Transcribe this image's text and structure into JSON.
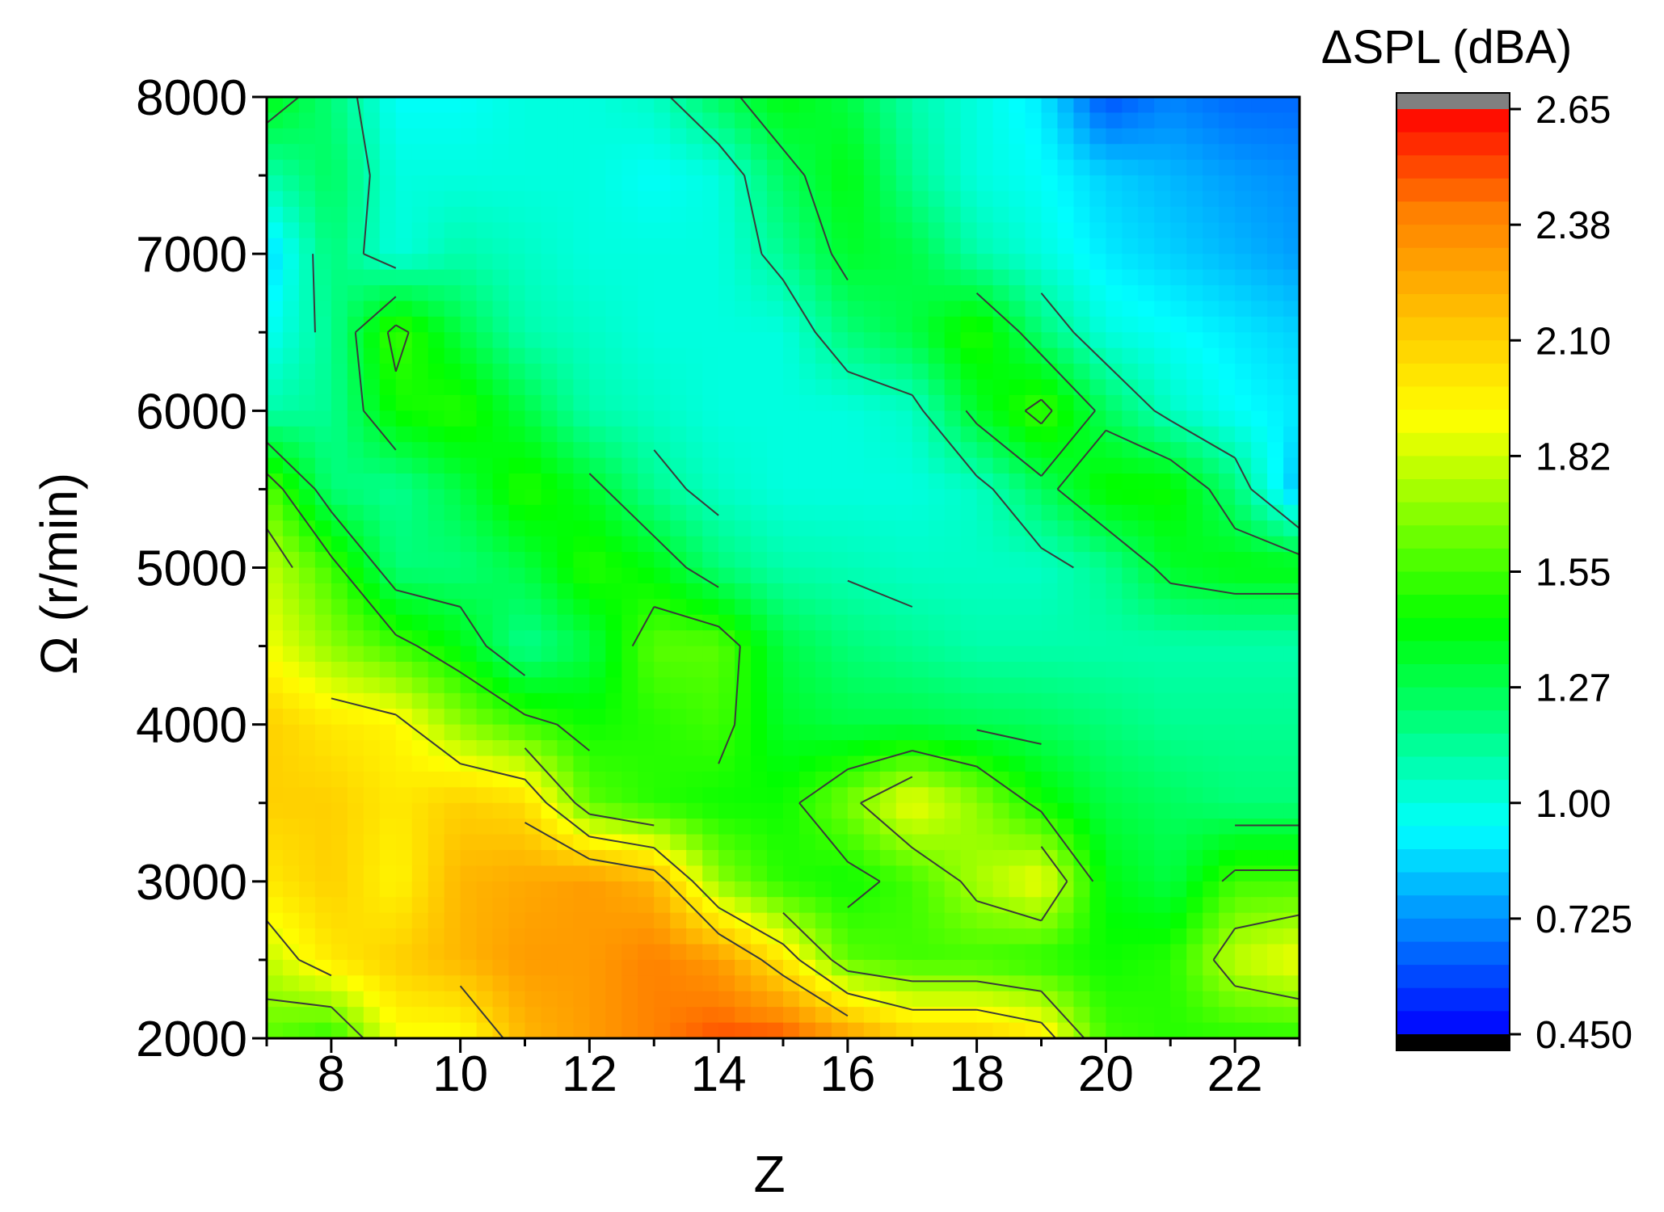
{
  "chart_data": {
    "type": "heatmap",
    "title": "",
    "xlabel": "Z",
    "ylabel": "Ω (r/min)",
    "xlim": [
      7,
      23
    ],
    "ylim": [
      2000,
      8000
    ],
    "x_ticks": [
      8,
      10,
      12,
      14,
      16,
      18,
      20,
      22
    ],
    "y_ticks": [
      2000,
      3000,
      4000,
      5000,
      6000,
      7000,
      8000
    ],
    "colorbar": {
      "label": "ΔSPL (dBA)",
      "range": [
        0.45,
        2.65
      ],
      "ticks": [
        "0.450",
        "0.725",
        "1.00",
        "1.27",
        "1.55",
        "1.82",
        "2.10",
        "2.38",
        "2.65"
      ],
      "colors": [
        "#0000ff",
        "#0080ff",
        "#00ffff",
        "#00ff80",
        "#00ff00",
        "#80ff00",
        "#ffff00",
        "#ffc000",
        "#ff8000",
        "#ff0000"
      ],
      "over_color": "#808080",
      "under_color": "#000000"
    },
    "grid": false,
    "z_values_description_rows_omega_cols_Z": {
      "Z": [
        7,
        8,
        9,
        10,
        11,
        12,
        13,
        14,
        15,
        16,
        17,
        18,
        19,
        20,
        21,
        22,
        23
      ],
      "Omega": [
        2000,
        2500,
        3000,
        3500,
        4000,
        4500,
        5000,
        5500,
        6000,
        6500,
        7000,
        7500,
        8000
      ],
      "values": [
        [
          1.6,
          1.5,
          1.9,
          1.9,
          2.2,
          2.3,
          2.4,
          2.5,
          2.5,
          2.3,
          2.1,
          2.1,
          2.0,
          1.55,
          1.5,
          1.5,
          1.5
        ],
        [
          1.8,
          2.0,
          2.1,
          2.2,
          2.3,
          2.3,
          2.4,
          2.3,
          2.0,
          1.6,
          1.55,
          1.55,
          1.5,
          1.45,
          1.5,
          1.8,
          1.9
        ],
        [
          2.0,
          2.1,
          1.95,
          2.2,
          2.25,
          2.3,
          2.2,
          1.7,
          1.5,
          1.45,
          1.55,
          1.75,
          1.9,
          1.4,
          1.3,
          1.55,
          1.55
        ],
        [
          2.1,
          2.1,
          2.0,
          2.1,
          2.05,
          1.6,
          1.5,
          1.45,
          1.45,
          1.65,
          1.9,
          1.7,
          1.45,
          1.3,
          1.25,
          1.2,
          1.2
        ],
        [
          2.1,
          2.0,
          1.95,
          1.7,
          1.55,
          1.45,
          1.5,
          1.55,
          1.35,
          1.3,
          1.3,
          1.27,
          1.25,
          1.2,
          1.15,
          1.15,
          1.15
        ],
        [
          1.9,
          1.7,
          1.55,
          1.4,
          1.15,
          1.3,
          1.6,
          1.6,
          1.3,
          1.2,
          1.15,
          1.1,
          1.1,
          1.1,
          1.1,
          1.1,
          1.1
        ],
        [
          1.8,
          1.55,
          1.2,
          1.2,
          1.3,
          1.5,
          1.4,
          1.2,
          1.1,
          1.08,
          1.05,
          1.05,
          1.05,
          1.15,
          1.35,
          1.4,
          1.4
        ],
        [
          1.6,
          1.2,
          1.15,
          1.3,
          1.5,
          1.35,
          1.15,
          1.05,
          1.0,
          1.0,
          1.0,
          1.05,
          1.25,
          1.45,
          1.45,
          1.2,
          0.8
        ],
        [
          1.1,
          1.15,
          1.45,
          1.5,
          1.3,
          1.1,
          1.05,
          1.0,
          1.0,
          1.0,
          1.05,
          1.35,
          1.55,
          1.25,
          1.05,
          0.95,
          0.9
        ],
        [
          0.95,
          1.15,
          1.55,
          1.3,
          1.1,
          1.05,
          1.0,
          1.0,
          1.0,
          1.2,
          1.3,
          1.5,
          1.2,
          1.0,
          0.95,
          0.9,
          0.85
        ],
        [
          0.85,
          1.2,
          1.0,
          1.1,
          1.05,
          1.0,
          1.0,
          1.0,
          1.15,
          1.35,
          1.3,
          1.1,
          1.0,
          0.9,
          0.85,
          0.8,
          0.75
        ],
        [
          1.1,
          1.25,
          1.0,
          1.0,
          1.0,
          1.0,
          0.95,
          1.0,
          1.25,
          1.4,
          1.15,
          1.0,
          0.95,
          0.85,
          0.8,
          0.75,
          0.72
        ],
        [
          1.4,
          1.2,
          0.95,
          0.95,
          1.0,
          1.0,
          1.05,
          1.25,
          1.4,
          1.3,
          1.1,
          1.0,
          0.9,
          0.6,
          0.7,
          0.65,
          0.65
        ]
      ]
    }
  }
}
